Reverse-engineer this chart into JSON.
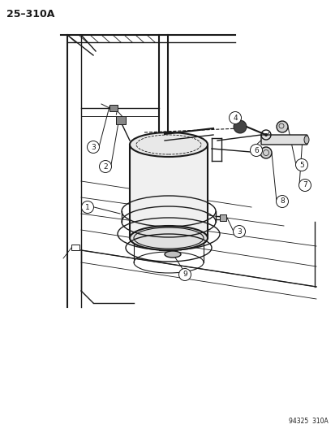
{
  "title": "25–310A",
  "footer": "94325  310A",
  "bg_color": "#ffffff",
  "line_color": "#1a1a1a",
  "fig_w": 4.14,
  "fig_h": 5.33,
  "dpi": 100
}
